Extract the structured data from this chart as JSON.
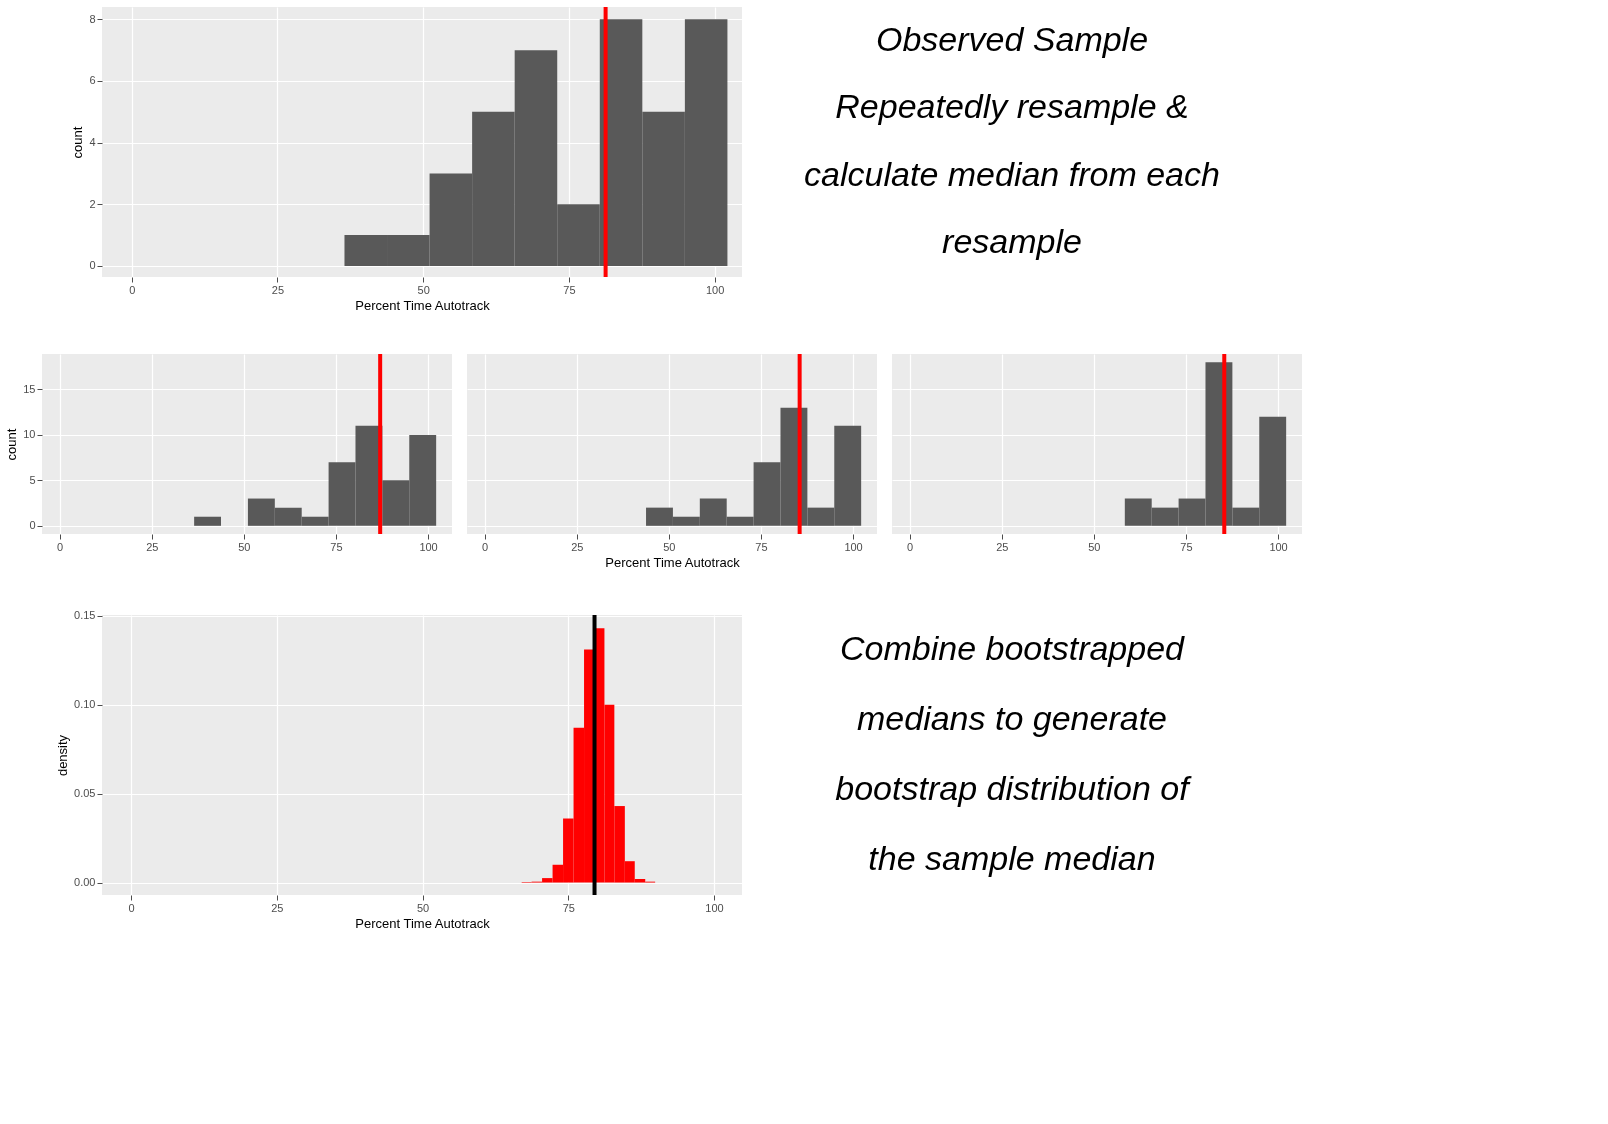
{
  "chart_data": [
    {
      "type": "histogram",
      "bins": [
        36.5,
        43.8,
        51.1,
        58.4,
        65.7,
        73.0,
        80.3,
        87.6,
        94.9,
        102.2
      ],
      "values": [
        1,
        1,
        3,
        5,
        7,
        2,
        8,
        5,
        8
      ],
      "color": "#595959",
      "xlim": [
        -5.1,
        104.7
      ],
      "ylim": [
        -0.36,
        8.4
      ],
      "xticks": [
        0,
        25,
        50,
        75,
        100
      ],
      "yticks": [
        0,
        2,
        4,
        6,
        8
      ],
      "xlabel": "Percent Time Autotrack",
      "ylabel": "count",
      "grid": true,
      "ref_lines": [
        {
          "axis": "x",
          "value": 81.3,
          "color": "#ff0000"
        }
      ],
      "annotations": [
        "Observed Sample",
        "Repeatedly resample & calculate median from each resample"
      ]
    },
    {
      "type": "histogram",
      "bins": [
        36.5,
        43.8,
        51.1,
        58.4,
        65.7,
        73.0,
        80.3,
        87.6,
        94.9,
        102.2
      ],
      "values": [
        1,
        0,
        3,
        2,
        1,
        7,
        11,
        5,
        10
      ],
      "color": "#595959",
      "xlim": [
        -4.8,
        106.5
      ],
      "ylim": [
        -0.9,
        18.9
      ],
      "xticks": [
        0,
        25,
        50,
        75,
        100
      ],
      "yticks": [
        0,
        5,
        10,
        15
      ],
      "ylabel": "count",
      "grid": true,
      "ref_lines": [
        {
          "axis": "x",
          "value": 87.0,
          "color": "#ff0000"
        }
      ]
    },
    {
      "type": "histogram",
      "bins": [
        43.8,
        51.1,
        58.4,
        65.7,
        73.0,
        80.3,
        87.6,
        94.9,
        102.2
      ],
      "values": [
        2,
        1,
        3,
        1,
        7,
        13,
        2,
        11
      ],
      "color": "#595959",
      "xlim": [
        -4.8,
        106.5
      ],
      "ylim": [
        -0.9,
        18.9
      ],
      "xticks": [
        0,
        25,
        50,
        75,
        100
      ],
      "yticks": [
        0,
        5,
        10,
        15
      ],
      "xlabel": "Percent Time Autotrack",
      "grid": true,
      "tick_labels": "x",
      "ref_lines": [
        {
          "axis": "x",
          "value": 85.5,
          "color": "#ff0000"
        }
      ]
    },
    {
      "type": "histogram",
      "bins": [
        58.4,
        65.7,
        73.0,
        80.3,
        87.6,
        94.9,
        102.2
      ],
      "values": [
        3,
        2,
        3,
        18,
        2,
        12
      ],
      "color": "#595959",
      "xlim": [
        -4.8,
        106.5
      ],
      "ylim": [
        -0.9,
        18.9
      ],
      "xticks": [
        0,
        25,
        50,
        75,
        100
      ],
      "yticks": [
        0,
        5,
        10,
        15
      ],
      "grid": true,
      "tick_labels": "x",
      "ref_lines": [
        {
          "axis": "x",
          "value": 85.4,
          "color": "#ff0000"
        }
      ]
    },
    {
      "type": "histogram",
      "bins": [
        67.0,
        68.7,
        70.5,
        72.3,
        74.1,
        75.9,
        77.7,
        79.4,
        81.2,
        82.9,
        84.7,
        86.4,
        88.2,
        89.9
      ],
      "values": [
        0.0003,
        0.0005,
        0.0025,
        0.01,
        0.036,
        0.087,
        0.131,
        0.143,
        0.1,
        0.043,
        0.012,
        0.002,
        0.0005
      ],
      "color": "#ff0000",
      "xlim": [
        -5.0,
        104.8
      ],
      "ylim": [
        -0.007,
        0.1504
      ],
      "xticks": [
        0,
        25,
        50,
        75,
        100
      ],
      "yticks": [
        {
          "value": 0,
          "label": "0.00"
        },
        {
          "value": 0.05,
          "label": "0.05"
        },
        {
          "value": 0.1,
          "label": "0.10"
        },
        {
          "value": 0.15,
          "label": "0.15"
        }
      ],
      "xlabel": "Percent Time Autotrack",
      "ylabel": "density",
      "grid": true,
      "ref_lines": [
        {
          "axis": "x",
          "value": 79.5,
          "color": "#000000"
        }
      ],
      "annotations": [
        "Combine bootstrapped medians to generate bootstrap distribution of the sample median"
      ]
    }
  ]
}
